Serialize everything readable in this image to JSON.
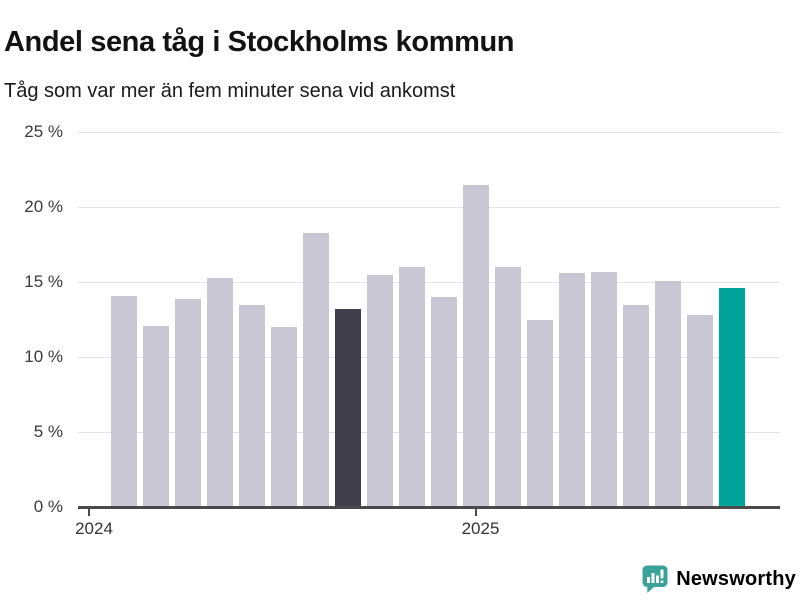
{
  "chart_data": {
    "type": "bar",
    "title": "Andel sena tåg i Stockholms kommun",
    "subtitle": "Tåg som var mer än fem minuter sena vid ankomst",
    "unit": "%",
    "x_labels": [
      "2024-02",
      "2024-03",
      "2024-04",
      "2024-05",
      "2024-06",
      "2024-07",
      "2024-08",
      "2024-09",
      "2024-10",
      "2024-11",
      "2024-12",
      "2025-01",
      "2025-02",
      "2025-03",
      "2025-04",
      "2025-05",
      "2025-06",
      "2025-07",
      "2025-08",
      "2025-09"
    ],
    "values": [
      14.1,
      12.1,
      13.9,
      15.3,
      13.5,
      12.0,
      18.3,
      13.2,
      15.5,
      16.0,
      14.0,
      21.5,
      16.0,
      12.5,
      15.6,
      15.7,
      13.5,
      15.1,
      12.8,
      14.6
    ],
    "ylim": [
      0,
      25
    ],
    "yticks": [
      "0 %",
      "5 %",
      "10 %",
      "15 %",
      "20 %",
      "25 %"
    ],
    "xticks": [
      "2024",
      "2025"
    ],
    "grid": "horizontal",
    "legend": "none",
    "colors": {
      "bar_default": "#c9c7d3",
      "bar_highlight_dark": "#423f4d",
      "bar_highlight_teal": "#00a39a"
    },
    "highlights": {
      "dark_index": 7,
      "teal_index": 19
    }
  },
  "branding": {
    "logo_text": "Newsworthy",
    "logo_icon": "newsworthy-speech-bubble-bars-icon",
    "color": "#3ba29a"
  }
}
